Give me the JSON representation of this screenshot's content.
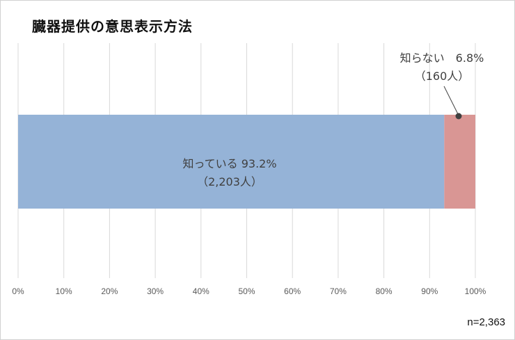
{
  "chart_data": {
    "type": "bar",
    "orientation": "horizontal",
    "stacked": true,
    "title": "臓器提供の意思表示方法",
    "series": [
      {
        "name": "知っている",
        "value": 93.2,
        "count_label": "（2,203人）",
        "color": "#95b3d7"
      },
      {
        "name": "知らない",
        "value": 6.8,
        "count_label": "（160人）",
        "color": "#d99694"
      }
    ],
    "data_labels": [
      "知っている 93.2%",
      "知らない　6.8%"
    ],
    "xlim": [
      0,
      100
    ],
    "x_ticks": [
      "0%",
      "10%",
      "20%",
      "30%",
      "40%",
      "50%",
      "60%",
      "70%",
      "80%",
      "90%",
      "100%"
    ],
    "grid": true,
    "annotation": "n=2,363"
  }
}
